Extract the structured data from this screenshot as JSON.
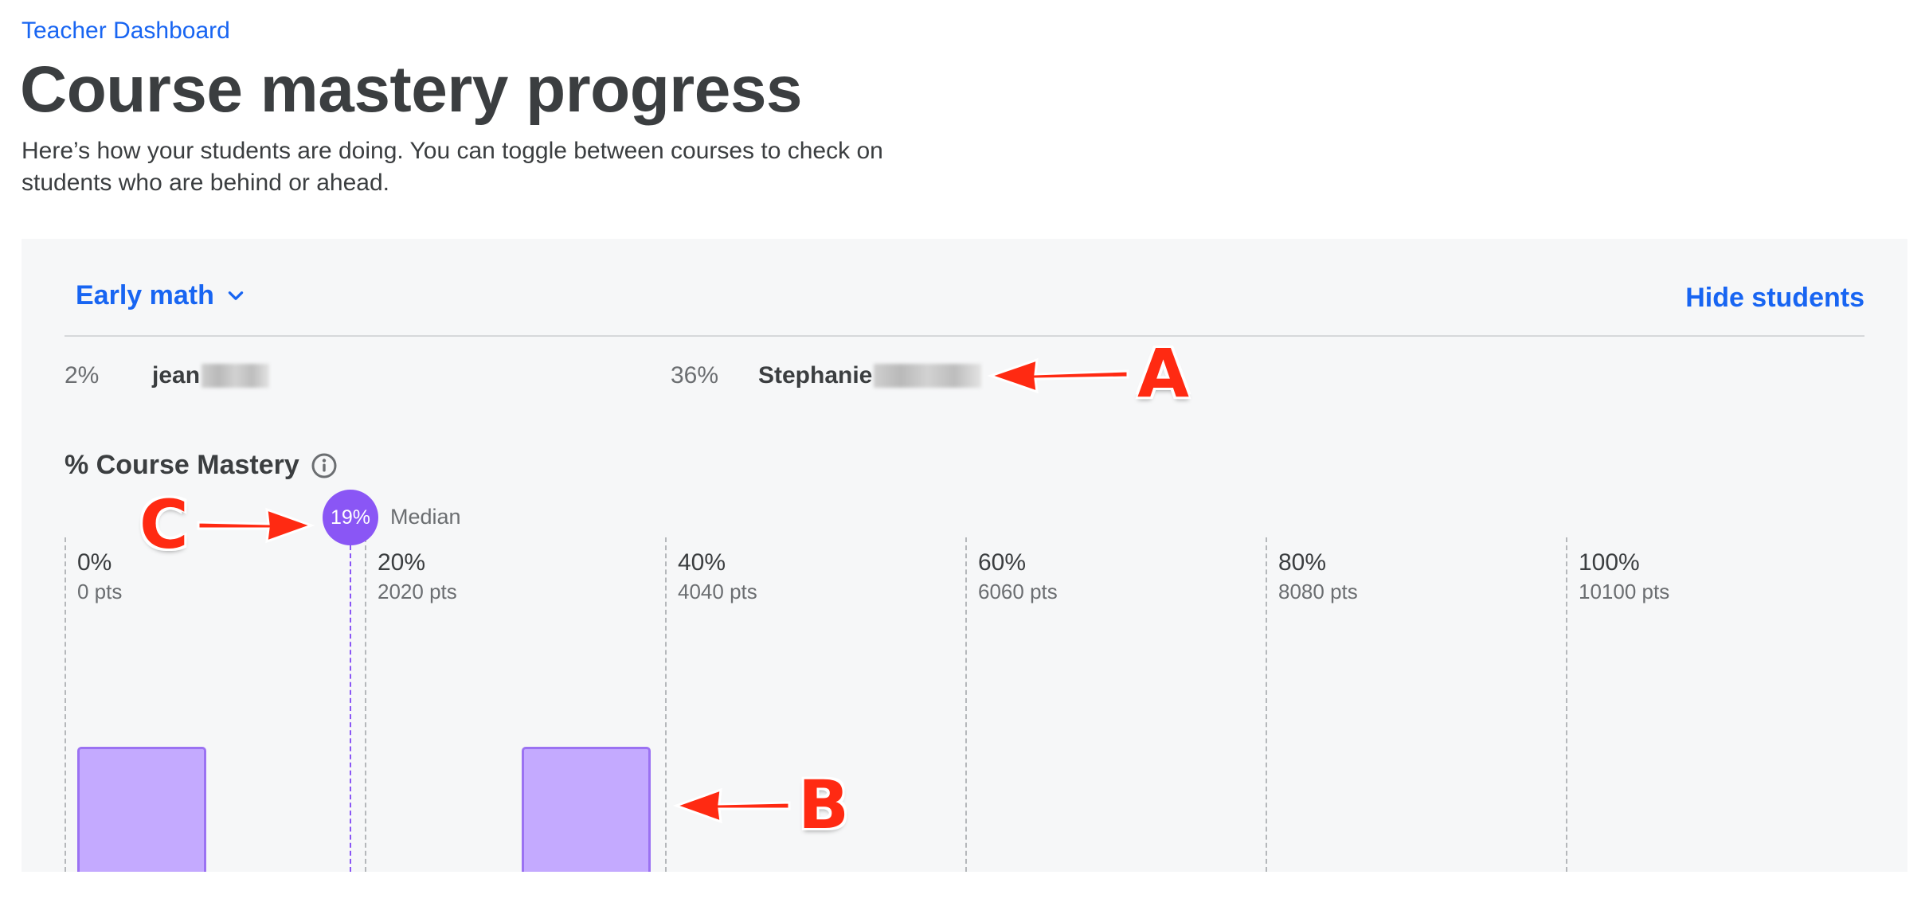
{
  "breadcrumb": "Teacher Dashboard",
  "title": "Course mastery progress",
  "description": "Here’s how your students are doing. You can toggle between courses to check on students who are behind or ahead.",
  "panel": {
    "course_select": "Early math",
    "hide_students": "Hide students",
    "students": [
      {
        "percent": "2%",
        "name": "jean"
      },
      {
        "percent": "36%",
        "name": "Stephanie"
      }
    ],
    "mastery_label": "% Course Mastery",
    "median": {
      "value": "19%",
      "label": "Median"
    },
    "ticks": [
      {
        "pct": "0%",
        "pts": "0 pts"
      },
      {
        "pct": "20%",
        "pts": "2020 pts"
      },
      {
        "pct": "40%",
        "pts": "4040 pts"
      },
      {
        "pct": "60%",
        "pts": "6060 pts"
      },
      {
        "pct": "80%",
        "pts": "8080 pts"
      },
      {
        "pct": "100%",
        "pts": "10100 pts"
      }
    ]
  },
  "chart_data": {
    "type": "bar",
    "bins": [
      "0%-10%",
      "30%-40%"
    ],
    "bin_student_counts": [
      1,
      1
    ],
    "x_axis": "% Course Mastery",
    "xlim": [
      0,
      100
    ],
    "median_percent": 19
  },
  "annotations": [
    "A",
    "B",
    "C"
  ],
  "colors": {
    "accent": "#1865f2",
    "median": "#8a56f5",
    "bar_fill": "#c4aaff",
    "annotation": "#ff2a12"
  }
}
